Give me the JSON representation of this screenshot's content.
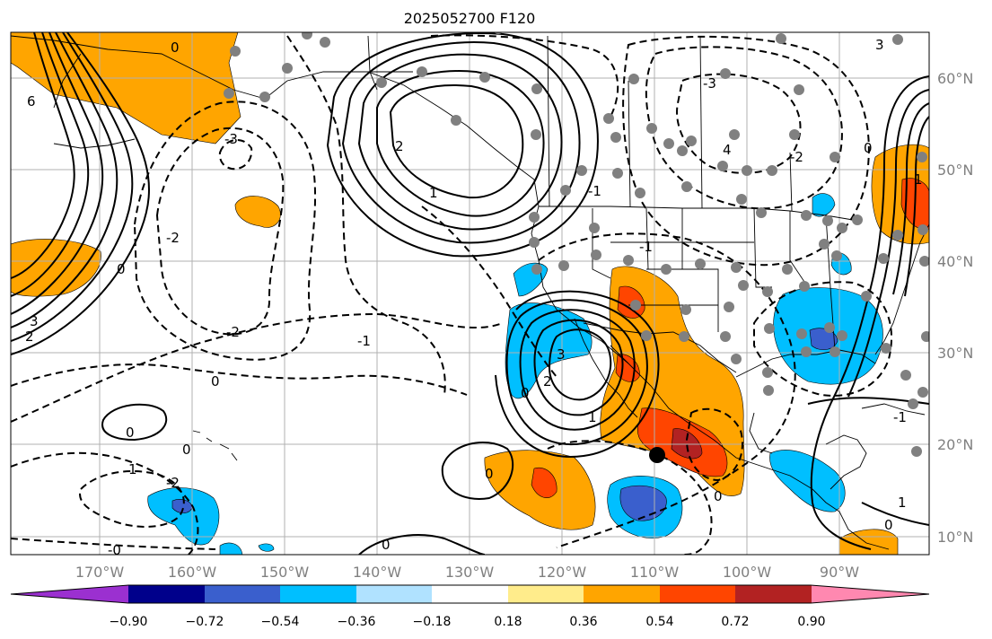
{
  "title": "2025052700 F120",
  "lat_labels": [
    "60°N",
    "50°N",
    "40°N",
    "30°N",
    "20°N",
    "10°N"
  ],
  "lon_labels": [
    "170°W",
    "160°W",
    "150°W",
    "140°W",
    "130°W",
    "120°W",
    "110°W",
    "100°W",
    "90°W"
  ],
  "colorbar": {
    "tick_labels": [
      "−0.90",
      "−0.72",
      "−0.54",
      "−0.36",
      "−0.18",
      "0.18",
      "0.36",
      "0.54",
      "0.72",
      "0.90"
    ],
    "colors": [
      "#9b30d0",
      "#00008b",
      "#3a5fcd",
      "#00bfff",
      "#b0e2ff",
      "#ffffff",
      "#ffec8b",
      "#ffa500",
      "#ff4500",
      "#b22222",
      "#ff88b0"
    ]
  },
  "contour_labels": [
    "6",
    "3",
    "2",
    "0",
    "-2",
    "0",
    "-1",
    "-2",
    "0",
    "0",
    "1",
    "-2",
    "-0",
    "0",
    "2",
    "1",
    "-3",
    "3",
    "2",
    "1",
    "0",
    "-1",
    "4",
    "-3",
    "3",
    "0",
    "-2",
    "-1",
    "0",
    "1",
    "0",
    "-1",
    "1",
    "0",
    "0"
  ],
  "fill_colors": {
    "orange": "#ffa500",
    "red": "#ff4500",
    "darkred": "#b22222",
    "cyan": "#00bfff",
    "blue": "#3a5fcd"
  },
  "station_color": "#808080",
  "marker_color": "#000000"
}
